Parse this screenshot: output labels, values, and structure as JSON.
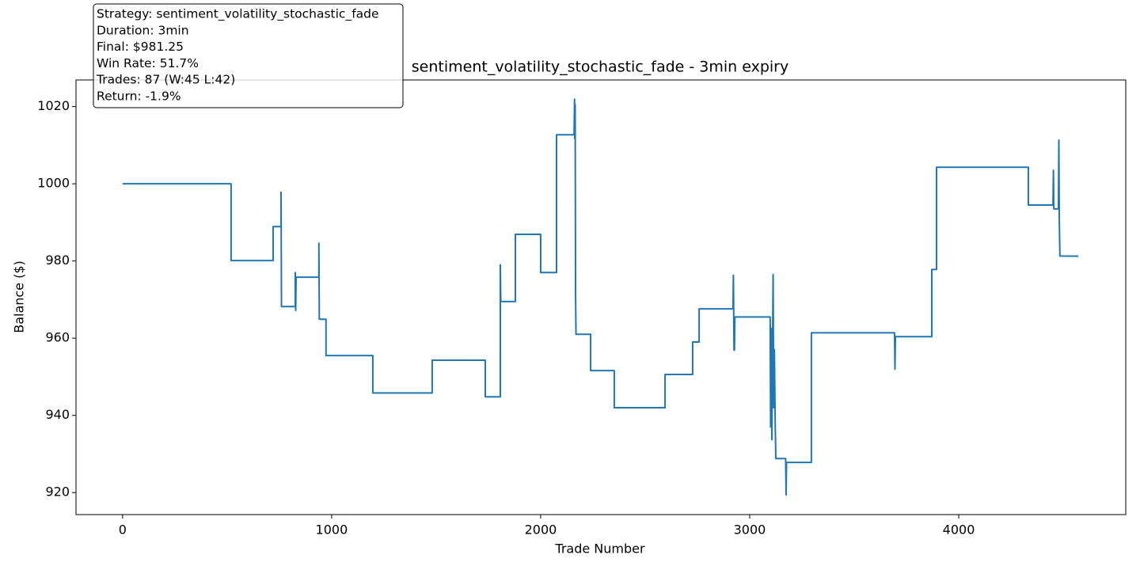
{
  "chart_data": {
    "type": "line",
    "title": "sentiment_volatility_stochastic_fade - 3min expiry",
    "xlabel": "Trade Number",
    "ylabel": "Balance ($)",
    "info_box": [
      "Strategy: sentiment_volatility_stochastic_fade",
      "Duration: 3min",
      "Final: $981.25",
      "Win Rate: 51.7%",
      "Trades: 87 (W:45 L:42)",
      "Return: -1.9%"
    ],
    "x": [
      0,
      519,
      519,
      720,
      720,
      758,
      758,
      760,
      826,
      826,
      828,
      830,
      939,
      939,
      941,
      973,
      973,
      1197,
      1197,
      1481,
      1481,
      1735,
      1735,
      1807,
      1807,
      1809,
      1879,
      1879,
      2000,
      2000,
      2076,
      2076,
      2160,
      2162,
      2163,
      2165,
      2167,
      2169,
      2239,
      2239,
      2352,
      2352,
      2595,
      2595,
      2727,
      2727,
      2758,
      2758,
      2920,
      2922,
      2925,
      2927,
      2929,
      3098,
      3100,
      3103,
      3106,
      3112,
      3115,
      3118,
      3122,
      3125,
      3172,
      3174,
      3176,
      3295,
      3295,
      3693,
      3695,
      3697,
      3871,
      3871,
      3894,
      3894,
      4333,
      4333,
      4451,
      4453,
      4455,
      4477,
      4479,
      4481,
      4484,
      4572
    ],
    "series": [
      {
        "color": "#1f77b4",
        "values": [
          1000,
          1000,
          980.1,
          980.1,
          988.9,
          988.9,
          997.8,
          968.2,
          968.2,
          977,
          967.2,
          975.8,
          975.8,
          984.6,
          964.9,
          964.9,
          955.5,
          955.5,
          945.8,
          945.8,
          954.3,
          954.3,
          944.8,
          944.8,
          979,
          969.5,
          969.5,
          986.9,
          986.9,
          977,
          977,
          1012.7,
          1012.7,
          1021.9,
          1011.7,
          1020.5,
          971,
          961,
          961,
          951.6,
          951.6,
          942,
          942,
          950.6,
          950.6,
          959,
          959,
          967.6,
          967.6,
          976.3,
          956.9,
          956.9,
          965.5,
          965.5,
          937,
          962.5,
          933.7,
          976.5,
          942,
          957,
          938,
          928.8,
          928.8,
          919.4,
          927.8,
          927.8,
          961.4,
          961.4,
          952,
          960.4,
          960.4,
          977.8,
          977.8,
          1004.3,
          1004.3,
          994.5,
          994.5,
          1003.5,
          993.5,
          993.5,
          1011.3,
          991,
          981.3,
          981.25
        ]
      }
    ],
    "xlim": [
      -223,
      4799
    ],
    "xticks": [
      0,
      1000,
      2000,
      3000,
      4000
    ],
    "ylim": [
      914.3,
      1026.9
    ],
    "yticks": [
      920,
      940,
      960,
      980,
      1000,
      1020
    ],
    "grid": false
  }
}
